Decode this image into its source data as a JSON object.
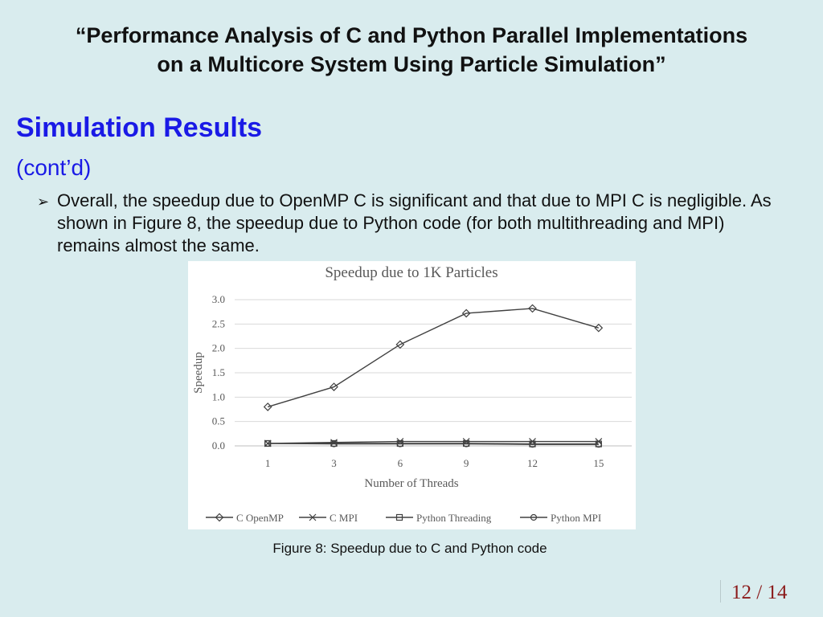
{
  "slide": {
    "title_line1": "“Performance Analysis of C and Python Parallel Implementations",
    "title_line2": "on a Multicore System Using Particle Simulation”",
    "heading": "Simulation Results",
    "subheading": "(cont’d)",
    "bullet_icon": "arrow-bullet-icon",
    "bullet": "Overall, the speedup due to OpenMP C is significant and that due to MPI C is negligible. As shown in Figure 8, the speedup due to Python code (for both multithreading and MPI) remains almost the same.",
    "caption": "Figure 8: Speedup due to C and Python code",
    "page": "12 / 14"
  },
  "chart_data": {
    "type": "line",
    "title": "Speedup due to 1K Particles",
    "xlabel": "Number of Threads",
    "ylabel": "Speedup",
    "categories": [
      "1",
      "3",
      "6",
      "9",
      "12",
      "15"
    ],
    "ylim": [
      0,
      3
    ],
    "yticks": [
      "0.0",
      "0.5",
      "1.0",
      "1.5",
      "2.0",
      "2.5",
      "3.0"
    ],
    "grid": true,
    "legend": "bottom",
    "series": [
      {
        "name": "C OpenMP",
        "marker": "diamond",
        "values": [
          0.8,
          1.21,
          2.08,
          2.72,
          2.82,
          2.42
        ]
      },
      {
        "name": "C MPI",
        "marker": "x",
        "values": [
          0.05,
          0.07,
          0.09,
          0.09,
          0.09,
          0.09
        ]
      },
      {
        "name": "Python Threading",
        "marker": "square",
        "values": [
          0.05,
          0.05,
          0.05,
          0.05,
          0.04,
          0.04
        ]
      },
      {
        "name": "Python MPI",
        "marker": "circle",
        "values": [
          0.05,
          0.04,
          0.04,
          0.04,
          0.03,
          0.03
        ]
      }
    ]
  }
}
